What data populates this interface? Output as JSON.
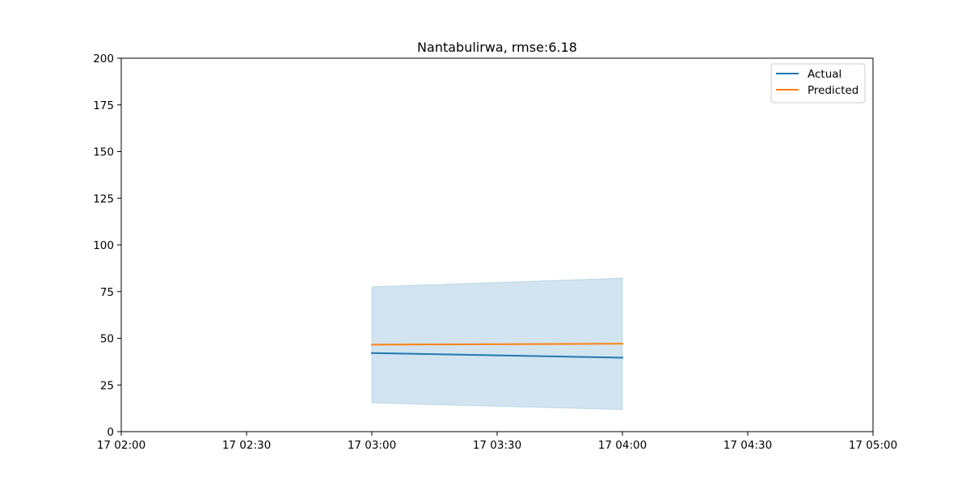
{
  "chart_data": {
    "type": "line",
    "title": "Nantabulirwa, rmse:6.18",
    "xlabel": "",
    "ylabel": "",
    "x": [
      "17 03:00",
      "17 04:00"
    ],
    "x_ticks": [
      "17 02:00",
      "17 02:30",
      "17 03:00",
      "17 03:30",
      "17 04:00",
      "17 04:30",
      "17 05:00"
    ],
    "x_tick_minutes": [
      120,
      150,
      180,
      210,
      240,
      270,
      300
    ],
    "x_minutes": [
      180,
      240
    ],
    "xlim_minutes": [
      120,
      300
    ],
    "y_ticks": [
      0,
      25,
      50,
      75,
      100,
      125,
      150,
      175,
      200
    ],
    "ylim": [
      0,
      200
    ],
    "grid": false,
    "legend_position": "top-right",
    "series": [
      {
        "name": "Actual",
        "values": [
          42.1,
          39.6
        ],
        "color": "#1f77b4"
      },
      {
        "name": "Predicted",
        "values": [
          46.6,
          47.1
        ],
        "color": "#ff7f0e"
      }
    ],
    "band": {
      "lower": [
        15.4,
        11.8
      ],
      "upper": [
        77.6,
        82.2
      ],
      "color": "#1f77b4",
      "opacity": 0.2
    }
  }
}
